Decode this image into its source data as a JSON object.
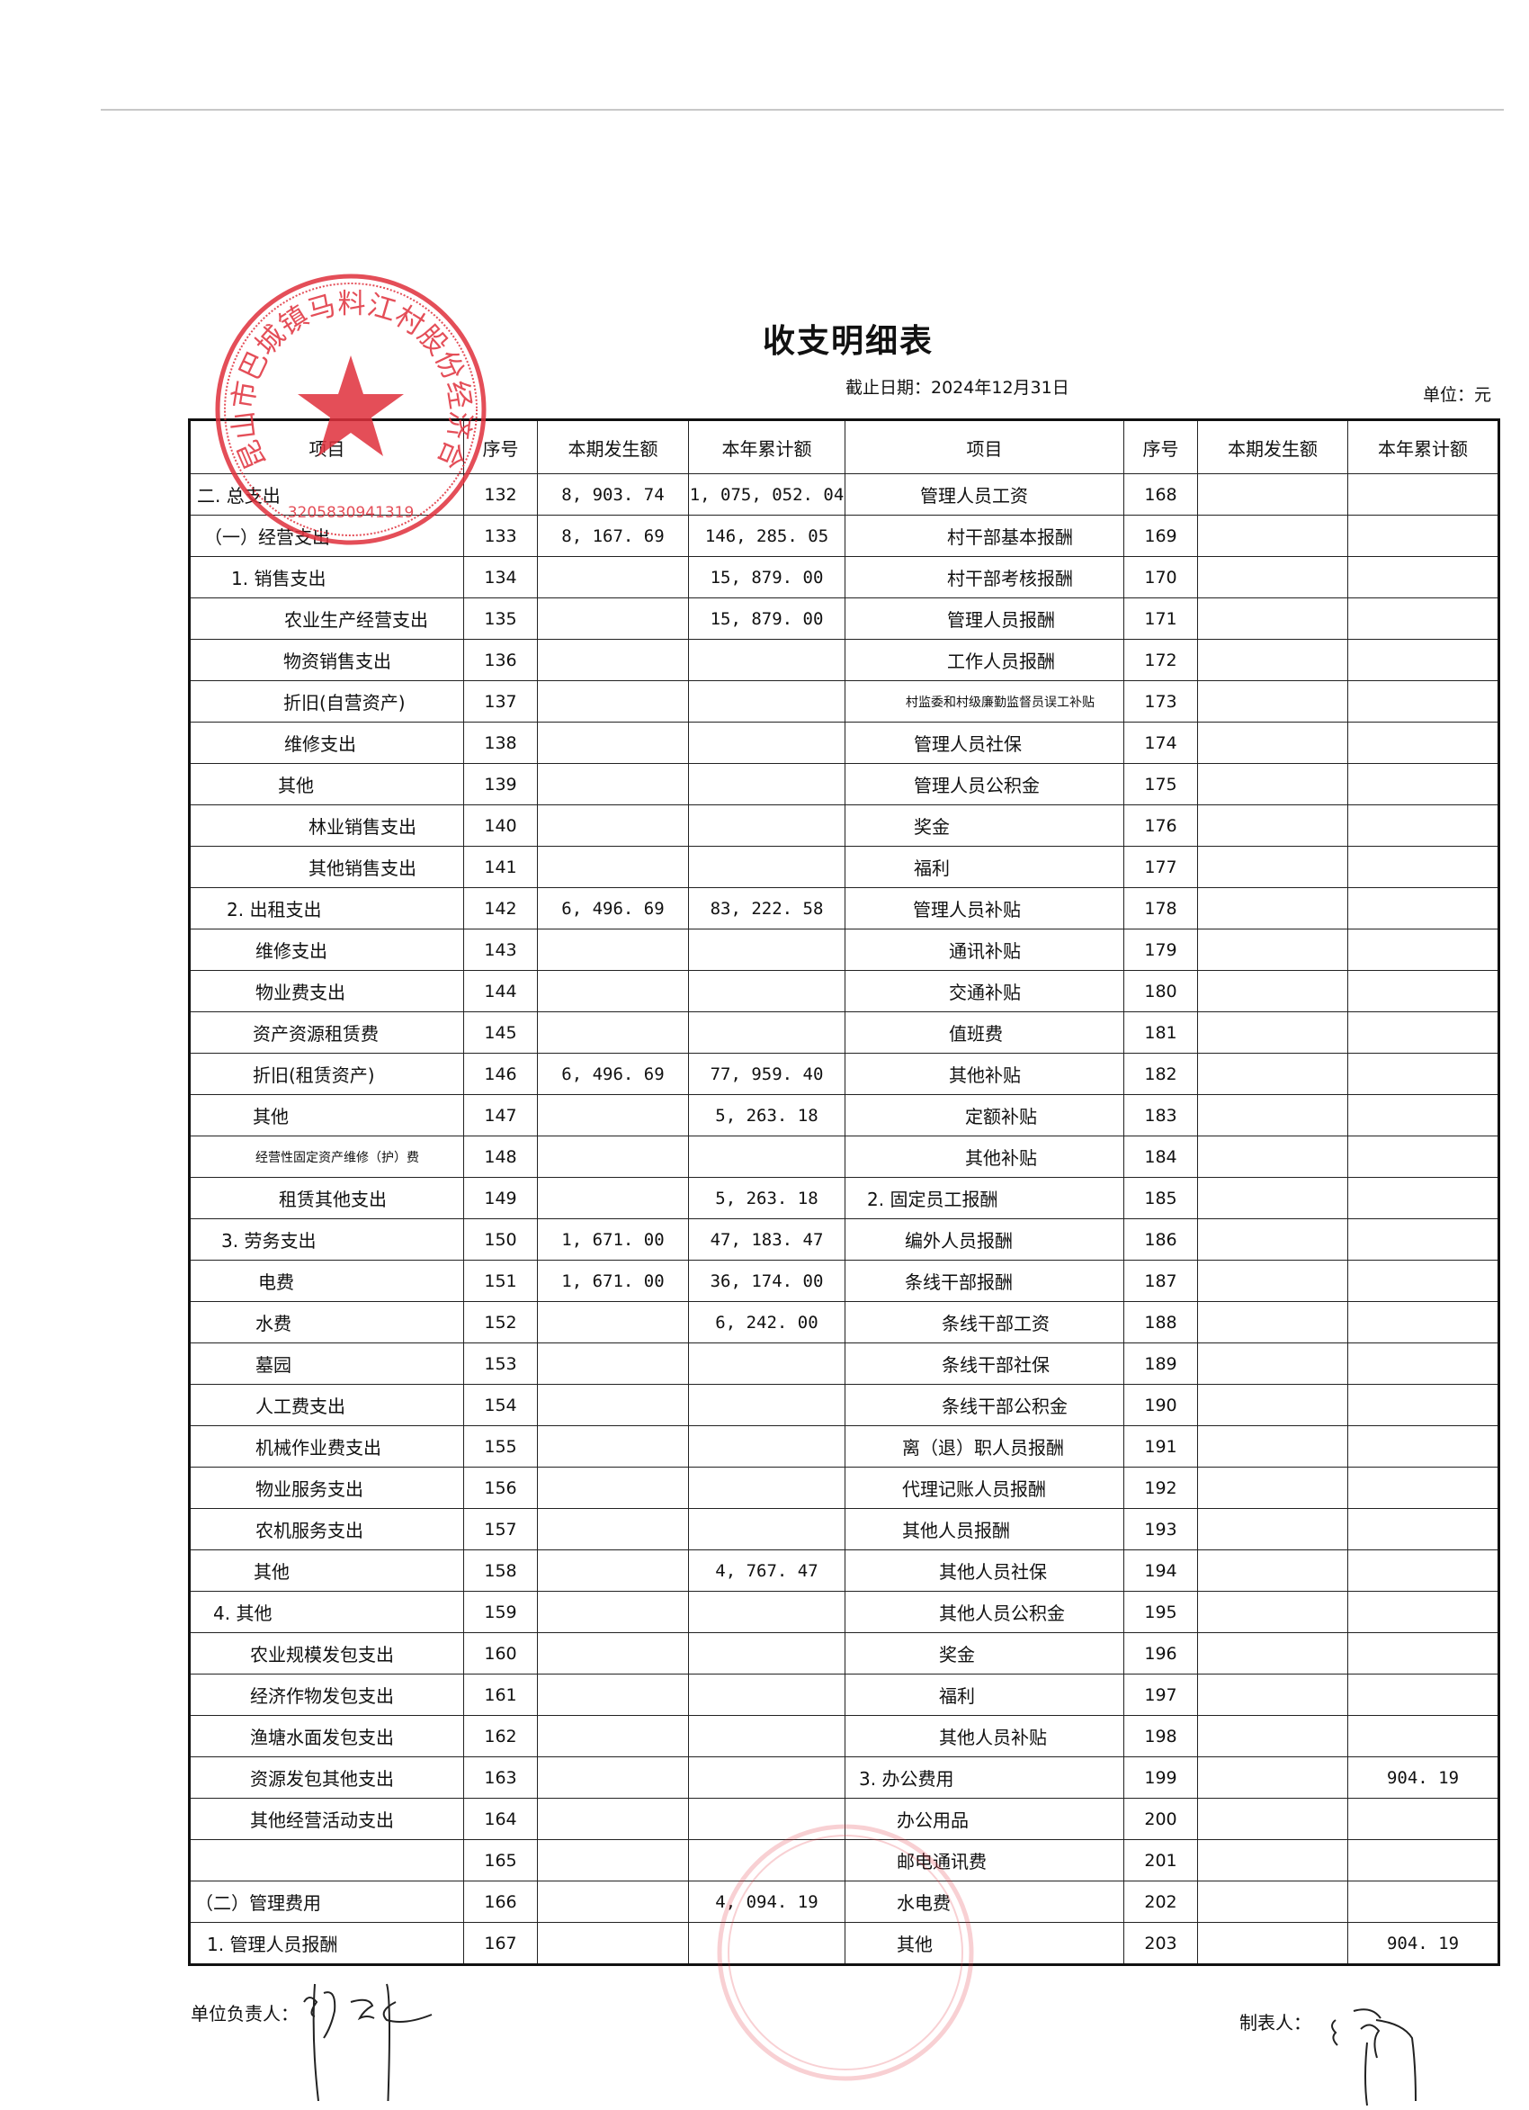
{
  "title": "收支明细表",
  "date": "截止日期：2024年12月31日",
  "unit": "单位：元",
  "headers": [
    "项目",
    "序号",
    "本期发生额",
    "本年累计额",
    "项目",
    "序号",
    "本期发生额",
    "本年累计额"
  ],
  "rows": [
    {
      "l": [
        "二. 总支出",
        "132",
        "8, 903. 74",
        "1, 075, 052. 04"
      ],
      "r": [
        "管理人员工资",
        "168",
        "",
        ""
      ]
    },
    {
      "l": [
        "（一）经营支出",
        "133",
        "8, 167. 69",
        "146, 285. 05"
      ],
      "r": [
        "村干部基本报酬",
        "169",
        "",
        ""
      ]
    },
    {
      "l": [
        "1. 销售支出",
        "134",
        "",
        "15, 879. 00"
      ],
      "r": [
        "村干部考核报酬",
        "170",
        "",
        ""
      ]
    },
    {
      "l": [
        "农业生产经营支出",
        "135",
        "",
        "15, 879. 00"
      ],
      "r": [
        "管理人员报酬",
        "171",
        "",
        ""
      ]
    },
    {
      "l": [
        "物资销售支出",
        "136",
        "",
        ""
      ],
      "r": [
        "工作人员报酬",
        "172",
        "",
        ""
      ]
    },
    {
      "l": [
        "折旧(自营资产)",
        "137",
        "",
        ""
      ],
      "r": [
        "村监委和村级廉勤监督员误工补贴",
        "173",
        "",
        ""
      ]
    },
    {
      "l": [
        "维修支出",
        "138",
        "",
        ""
      ],
      "r": [
        "管理人员社保",
        "174",
        "",
        ""
      ]
    },
    {
      "l": [
        "其他",
        "139",
        "",
        ""
      ],
      "r": [
        "管理人员公积金",
        "175",
        "",
        ""
      ]
    },
    {
      "l": [
        "林业销售支出",
        "140",
        "",
        ""
      ],
      "r": [
        "奖金",
        "176",
        "",
        ""
      ]
    },
    {
      "l": [
        "其他销售支出",
        "141",
        "",
        ""
      ],
      "r": [
        "福利",
        "177",
        "",
        ""
      ]
    },
    {
      "l": [
        "2. 出租支出",
        "142",
        "6, 496. 69",
        "83, 222. 58"
      ],
      "r": [
        "管理人员补贴",
        "178",
        "",
        ""
      ]
    },
    {
      "l": [
        "维修支出",
        "143",
        "",
        ""
      ],
      "r": [
        "通讯补贴",
        "179",
        "",
        ""
      ]
    },
    {
      "l": [
        "物业费支出",
        "144",
        "",
        ""
      ],
      "r": [
        "交通补贴",
        "180",
        "",
        ""
      ]
    },
    {
      "l": [
        "资产资源租赁费",
        "145",
        "",
        ""
      ],
      "r": [
        "值班费",
        "181",
        "",
        ""
      ]
    },
    {
      "l": [
        "折旧(租赁资产)",
        "146",
        "6, 496. 69",
        "77, 959. 40"
      ],
      "r": [
        "其他补贴",
        "182",
        "",
        ""
      ]
    },
    {
      "l": [
        "其他",
        "147",
        "",
        "5, 263. 18"
      ],
      "r": [
        "定额补贴",
        "183",
        "",
        ""
      ]
    },
    {
      "l": [
        "经营性固定资产维修（护）费",
        "148",
        "",
        ""
      ],
      "r": [
        "其他补贴",
        "184",
        "",
        ""
      ]
    },
    {
      "l": [
        "租赁其他支出",
        "149",
        "",
        "5, 263. 18"
      ],
      "r": [
        "2. 固定员工报酬",
        "185",
        "",
        ""
      ]
    },
    {
      "l": [
        "3. 劳务支出",
        "150",
        "1, 671. 00",
        "47, 183. 47"
      ],
      "r": [
        "编外人员报酬",
        "186",
        "",
        ""
      ]
    },
    {
      "l": [
        "电费",
        "151",
        "1, 671. 00",
        "36, 174. 00"
      ],
      "r": [
        "条线干部报酬",
        "187",
        "",
        ""
      ]
    },
    {
      "l": [
        "水费",
        "152",
        "",
        "6, 242. 00"
      ],
      "r": [
        "条线干部工资",
        "188",
        "",
        ""
      ]
    },
    {
      "l": [
        "墓园",
        "153",
        "",
        ""
      ],
      "r": [
        "条线干部社保",
        "189",
        "",
        ""
      ]
    },
    {
      "l": [
        "人工费支出",
        "154",
        "",
        ""
      ],
      "r": [
        "条线干部公积金",
        "190",
        "",
        ""
      ]
    },
    {
      "l": [
        "机械作业费支出",
        "155",
        "",
        ""
      ],
      "r": [
        "离（退）职人员报酬",
        "191",
        "",
        ""
      ]
    },
    {
      "l": [
        "物业服务支出",
        "156",
        "",
        ""
      ],
      "r": [
        "代理记账人员报酬",
        "192",
        "",
        ""
      ]
    },
    {
      "l": [
        "农机服务支出",
        "157",
        "",
        ""
      ],
      "r": [
        "其他人员报酬",
        "193",
        "",
        ""
      ]
    },
    {
      "l": [
        "其他",
        "158",
        "",
        "4, 767. 47"
      ],
      "r": [
        "其他人员社保",
        "194",
        "",
        ""
      ]
    },
    {
      "l": [
        "4. 其他",
        "159",
        "",
        ""
      ],
      "r": [
        "其他人员公积金",
        "195",
        "",
        ""
      ]
    },
    {
      "l": [
        "农业规模发包支出",
        "160",
        "",
        ""
      ],
      "r": [
        "奖金",
        "196",
        "",
        ""
      ]
    },
    {
      "l": [
        "经济作物发包支出",
        "161",
        "",
        ""
      ],
      "r": [
        "福利",
        "197",
        "",
        ""
      ]
    },
    {
      "l": [
        "渔塘水面发包支出",
        "162",
        "",
        ""
      ],
      "r": [
        "其他人员补贴",
        "198",
        "",
        ""
      ]
    },
    {
      "l": [
        "资源发包其他支出",
        "163",
        "",
        ""
      ],
      "r": [
        "3. 办公费用",
        "199",
        "",
        "904. 19"
      ]
    },
    {
      "l": [
        "其他经营活动支出",
        "164",
        "",
        ""
      ],
      "r": [
        "办公用品",
        "200",
        "",
        ""
      ]
    },
    {
      "l": [
        "",
        "165",
        "",
        ""
      ],
      "r": [
        "邮电通讯费",
        "201",
        "",
        ""
      ]
    },
    {
      "l": [
        "（二）管理费用",
        "166",
        "",
        "4, 094. 19"
      ],
      "r": [
        "水电费",
        "202",
        "",
        ""
      ]
    },
    {
      "l": [
        "1. 管理人员报酬",
        "167",
        "",
        ""
      ],
      "r": [
        "其他",
        "203",
        "",
        "904. 19"
      ]
    }
  ],
  "footer": {
    "leader_label": "单位负责人：",
    "preparer_label": "制表人："
  },
  "stamp": {
    "text": "昆山市巴城镇马料江村股份经济合作社",
    "number": "3205830941319",
    "color": "#e0303c"
  }
}
